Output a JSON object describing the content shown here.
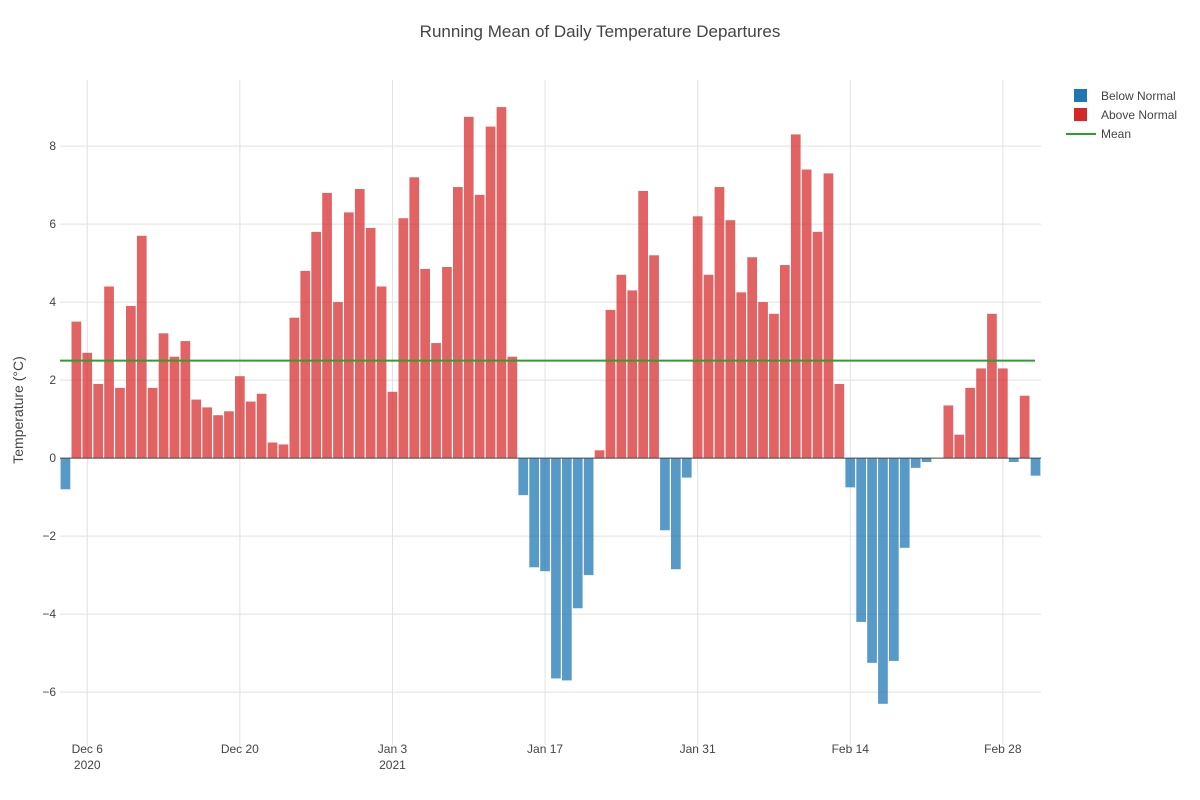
{
  "chart_data": {
    "type": "bar",
    "title": "Running Mean of Daily Temperature Departures",
    "xlabel": "",
    "ylabel": "Temperature (°C)",
    "ylim": [
      -7.1,
      9.9
    ],
    "grid": true,
    "legend_position": "top-right",
    "start_date": "2020-12-04",
    "mean": 2.5,
    "x_ticks": [
      {
        "day": 2,
        "label": "Dec 6",
        "sublabel": "2020"
      },
      {
        "day": 16,
        "label": "Dec 20",
        "sublabel": ""
      },
      {
        "day": 30,
        "label": "Jan 3",
        "sublabel": "2021"
      },
      {
        "day": 44,
        "label": "Jan 17",
        "sublabel": ""
      },
      {
        "day": 58,
        "label": "Jan 31",
        "sublabel": ""
      },
      {
        "day": 72,
        "label": "Feb 14",
        "sublabel": ""
      },
      {
        "day": 86,
        "label": "Feb 28",
        "sublabel": ""
      }
    ],
    "y_ticks": [
      -6,
      -4,
      -2,
      0,
      2,
      4,
      6,
      8
    ],
    "values": [
      -0.8,
      3.5,
      2.7,
      1.9,
      4.4,
      1.8,
      3.9,
      5.7,
      1.8,
      3.2,
      2.6,
      3.0,
      1.5,
      1.3,
      1.1,
      1.2,
      2.1,
      1.45,
      1.65,
      0.4,
      0.35,
      3.6,
      4.8,
      5.8,
      6.8,
      4.0,
      6.3,
      6.9,
      5.9,
      4.4,
      1.7,
      6.15,
      7.2,
      4.85,
      2.95,
      4.9,
      6.95,
      8.75,
      6.75,
      8.5,
      9.0,
      2.6,
      -0.95,
      -2.8,
      -2.9,
      -5.65,
      -5.7,
      -3.85,
      -3.0,
      0.2,
      3.8,
      4.7,
      4.3,
      6.85,
      5.2,
      -1.85,
      -2.85,
      -0.5,
      6.2,
      4.7,
      6.95,
      6.1,
      4.25,
      5.15,
      4.0,
      3.7,
      4.95,
      8.3,
      7.4,
      5.8,
      7.3,
      1.9,
      -0.75,
      -4.2,
      -5.25,
      -6.3,
      -5.2,
      -2.3,
      -0.25,
      -0.1,
      0.0,
      1.35,
      0.6,
      1.8,
      2.3,
      3.7,
      2.3,
      -0.1,
      1.6,
      -0.45
    ],
    "series": [
      {
        "name": "Below Normal",
        "color": "#1f77b4"
      },
      {
        "name": "Above Normal",
        "color": "#d62728"
      },
      {
        "name": "Mean",
        "color": "#2ca02c"
      }
    ]
  }
}
